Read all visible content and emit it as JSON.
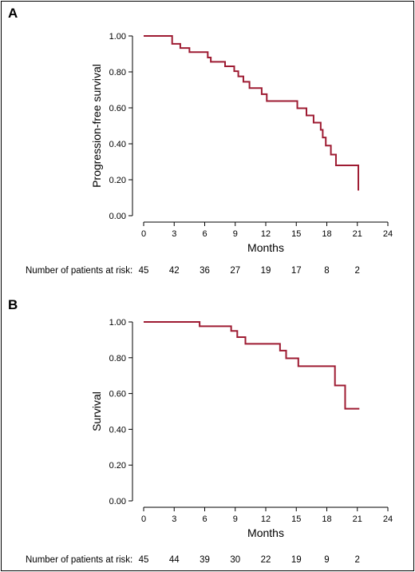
{
  "style": {
    "curve_color": "#9e1b32",
    "axis_color": "#000000"
  },
  "chart_data": [
    {
      "panel_label": "A",
      "type": "line",
      "step": "post",
      "xlabel": "Months",
      "ylabel": "Progression-free survival",
      "xlim": [
        0,
        24
      ],
      "ylim": [
        0,
        1
      ],
      "x_ticks": [
        0,
        3,
        6,
        9,
        12,
        15,
        18,
        21,
        24
      ],
      "x_tick_labels": [
        "0",
        "3",
        "6",
        "9",
        "12",
        "15",
        "18",
        "21",
        "24"
      ],
      "y_ticks": [
        0,
        0.2,
        0.4,
        0.6,
        0.8,
        1.0
      ],
      "y_tick_labels": [
        "0.00",
        "0.20",
        "0.40",
        "0.60",
        "0.80",
        "1.00"
      ],
      "grid": false,
      "risk_table": {
        "label": "Number of patients at risk:",
        "x": [
          0,
          3,
          6,
          9,
          12,
          15,
          18,
          21
        ],
        "values": [
          "45",
          "42",
          "36",
          "27",
          "19",
          "17",
          "8",
          "2"
        ]
      },
      "series": [
        {
          "x": [
            0,
            2.8,
            3.6,
            4.5,
            6.3,
            6.6,
            8.0,
            8.9,
            9.3,
            9.8,
            10.4,
            11.6,
            12.1,
            15.1,
            16.0,
            16.7,
            17.4,
            17.6,
            17.9,
            18.4,
            18.9,
            21.1,
            21.1
          ],
          "y": [
            1.0,
            0.956,
            0.933,
            0.91,
            0.88,
            0.856,
            0.831,
            0.804,
            0.775,
            0.745,
            0.71,
            0.676,
            0.638,
            0.598,
            0.558,
            0.518,
            0.478,
            0.435,
            0.39,
            0.34,
            0.28,
            0.28,
            0.14
          ]
        }
      ]
    },
    {
      "panel_label": "B",
      "type": "line",
      "step": "post",
      "xlabel": "Months",
      "ylabel": "Survival",
      "xlim": [
        0,
        24
      ],
      "ylim": [
        0,
        1
      ],
      "x_ticks": [
        0,
        3,
        6,
        9,
        12,
        15,
        18,
        21,
        24
      ],
      "x_tick_labels": [
        "0",
        "3",
        "6",
        "9",
        "12",
        "15",
        "18",
        "21",
        "24"
      ],
      "y_ticks": [
        0,
        0.2,
        0.4,
        0.6,
        0.8,
        1.0
      ],
      "y_tick_labels": [
        "0.00",
        "0.20",
        "0.40",
        "0.60",
        "0.80",
        "1.00"
      ],
      "grid": false,
      "risk_table": {
        "label": "Number of patients at risk:",
        "x": [
          0,
          3,
          6,
          9,
          12,
          15,
          18,
          21
        ],
        "values": [
          "45",
          "44",
          "39",
          "30",
          "22",
          "19",
          "9",
          "2"
        ]
      },
      "series": [
        {
          "x": [
            0,
            5.5,
            8.6,
            9.2,
            10.0,
            13.4,
            14.0,
            15.2,
            18.8,
            19.8,
            21.2
          ],
          "y": [
            1.0,
            0.976,
            0.95,
            0.915,
            0.878,
            0.84,
            0.797,
            0.753,
            0.645,
            0.515,
            0.515
          ]
        }
      ]
    }
  ]
}
